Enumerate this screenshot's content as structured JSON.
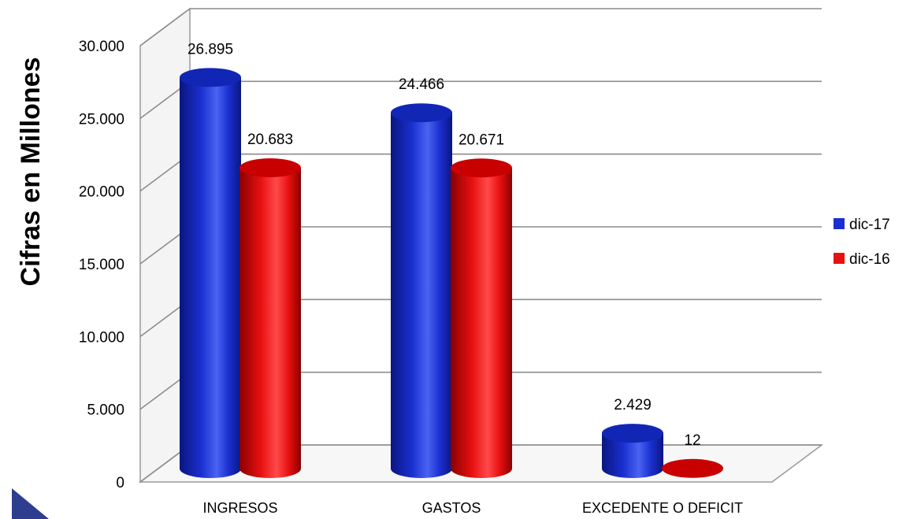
{
  "chart_data": {
    "type": "bar",
    "title": "",
    "xlabel": "",
    "ylabel": "Cifras en Millones",
    "ylim": [
      0,
      30000
    ],
    "ytick_values": [
      0,
      5000,
      10000,
      15000,
      20000,
      25000,
      30000
    ],
    "ytick_labels": [
      "0",
      "5.000",
      "10.000",
      "15.000",
      "20.000",
      "25.000",
      "30.000"
    ],
    "categories": [
      "INGRESOS",
      "GASTOS",
      "EXCEDENTE O DEFICIT"
    ],
    "series": [
      {
        "name": "dic-17",
        "values": [
          26895,
          24466,
          2429
        ],
        "labels": [
          "26.895",
          "24.466",
          "2.429"
        ],
        "color": "#1a2fd0"
      },
      {
        "name": "dic-16",
        "values": [
          20683,
          20671,
          12
        ],
        "labels": [
          "20.683",
          "20.671",
          "12"
        ],
        "color": "#e81010"
      }
    ],
    "grid": true,
    "legend_position": "right",
    "style": "3d-cylinder"
  }
}
